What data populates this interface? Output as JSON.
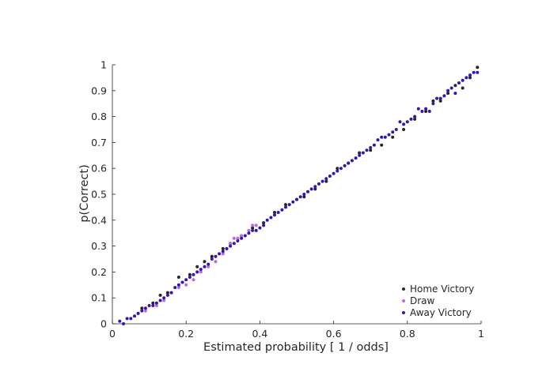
{
  "chart_data": {
    "type": "scatter",
    "xlabel": "Estimated probability [ 1 / odds]",
    "ylabel": "p(Correct)",
    "xlim": [
      0,
      1
    ],
    "ylim": [
      0,
      1
    ],
    "xticks": [
      "0",
      "0.2",
      "0.4",
      "0.6",
      "0.8",
      "1"
    ],
    "yticks": [
      "0",
      "0.1",
      "0.2",
      "0.3",
      "0.4",
      "0.5",
      "0.6",
      "0.7",
      "0.8",
      "0.9",
      "1"
    ],
    "grid": false,
    "legend": "bottom-right",
    "series": [
      {
        "name": "Home Victory",
        "color": "#262626",
        "points": [
          [
            0.08,
            0.06
          ],
          [
            0.11,
            0.08
          ],
          [
            0.13,
            0.11
          ],
          [
            0.15,
            0.12
          ],
          [
            0.18,
            0.18
          ],
          [
            0.21,
            0.19
          ],
          [
            0.23,
            0.22
          ],
          [
            0.25,
            0.24
          ],
          [
            0.27,
            0.26
          ],
          [
            0.3,
            0.29
          ],
          [
            0.32,
            0.31
          ],
          [
            0.35,
            0.34
          ],
          [
            0.38,
            0.37
          ],
          [
            0.41,
            0.39
          ],
          [
            0.44,
            0.43
          ],
          [
            0.47,
            0.46
          ],
          [
            0.5,
            0.48
          ],
          [
            0.52,
            0.49
          ],
          [
            0.55,
            0.52
          ],
          [
            0.58,
            0.55
          ],
          [
            0.61,
            0.6
          ],
          [
            0.64,
            0.62
          ],
          [
            0.67,
            0.66
          ],
          [
            0.7,
            0.67
          ],
          [
            0.73,
            0.69
          ],
          [
            0.76,
            0.72
          ],
          [
            0.79,
            0.75
          ],
          [
            0.82,
            0.79
          ],
          [
            0.85,
            0.82
          ],
          [
            0.87,
            0.86
          ],
          [
            0.89,
            0.86
          ],
          [
            0.91,
            0.89
          ],
          [
            0.93,
            0.92
          ],
          [
            0.95,
            0.91
          ],
          [
            0.97,
            0.95
          ],
          [
            0.99,
            0.99
          ]
        ]
      },
      {
        "name": "Draw",
        "color": "#b36ae2",
        "points": [
          [
            0.07,
            0.04
          ],
          [
            0.09,
            0.05
          ],
          [
            0.12,
            0.07
          ],
          [
            0.14,
            0.09
          ],
          [
            0.16,
            0.12
          ],
          [
            0.18,
            0.14
          ],
          [
            0.2,
            0.15
          ],
          [
            0.22,
            0.17
          ],
          [
            0.24,
            0.2
          ],
          [
            0.26,
            0.22
          ],
          [
            0.28,
            0.24
          ],
          [
            0.3,
            0.27
          ],
          [
            0.31,
            0.29
          ],
          [
            0.32,
            0.31
          ],
          [
            0.33,
            0.33
          ],
          [
            0.34,
            0.33
          ],
          [
            0.35,
            0.34
          ],
          [
            0.37,
            0.36
          ],
          [
            0.38,
            0.38
          ],
          [
            0.39,
            0.38
          ]
        ]
      },
      {
        "name": "Away Victory",
        "color": "#3713b2",
        "points": [
          [
            0.02,
            0.01
          ],
          [
            0.03,
            0.0
          ],
          [
            0.04,
            0.02
          ],
          [
            0.05,
            0.02
          ],
          [
            0.06,
            0.03
          ],
          [
            0.07,
            0.04
          ],
          [
            0.08,
            0.05
          ],
          [
            0.09,
            0.06
          ],
          [
            0.1,
            0.07
          ],
          [
            0.11,
            0.07
          ],
          [
            0.12,
            0.08
          ],
          [
            0.13,
            0.09
          ],
          [
            0.14,
            0.1
          ],
          [
            0.15,
            0.11
          ],
          [
            0.16,
            0.12
          ],
          [
            0.17,
            0.14
          ],
          [
            0.18,
            0.15
          ],
          [
            0.19,
            0.16
          ],
          [
            0.2,
            0.17
          ],
          [
            0.21,
            0.18
          ],
          [
            0.22,
            0.19
          ],
          [
            0.23,
            0.2
          ],
          [
            0.24,
            0.21
          ],
          [
            0.25,
            0.22
          ],
          [
            0.26,
            0.23
          ],
          [
            0.27,
            0.25
          ],
          [
            0.28,
            0.26
          ],
          [
            0.29,
            0.27
          ],
          [
            0.3,
            0.28
          ],
          [
            0.31,
            0.29
          ],
          [
            0.32,
            0.3
          ],
          [
            0.33,
            0.31
          ],
          [
            0.34,
            0.32
          ],
          [
            0.35,
            0.33
          ],
          [
            0.36,
            0.34
          ],
          [
            0.37,
            0.35
          ],
          [
            0.38,
            0.36
          ],
          [
            0.39,
            0.36
          ],
          [
            0.4,
            0.37
          ],
          [
            0.41,
            0.38
          ],
          [
            0.42,
            0.4
          ],
          [
            0.43,
            0.41
          ],
          [
            0.44,
            0.42
          ],
          [
            0.45,
            0.43
          ],
          [
            0.46,
            0.44
          ],
          [
            0.47,
            0.45
          ],
          [
            0.48,
            0.46
          ],
          [
            0.49,
            0.47
          ],
          [
            0.5,
            0.48
          ],
          [
            0.51,
            0.49
          ],
          [
            0.52,
            0.5
          ],
          [
            0.53,
            0.51
          ],
          [
            0.54,
            0.52
          ],
          [
            0.55,
            0.53
          ],
          [
            0.56,
            0.54
          ],
          [
            0.57,
            0.55
          ],
          [
            0.58,
            0.56
          ],
          [
            0.59,
            0.57
          ],
          [
            0.6,
            0.58
          ],
          [
            0.61,
            0.59
          ],
          [
            0.62,
            0.6
          ],
          [
            0.63,
            0.61
          ],
          [
            0.64,
            0.62
          ],
          [
            0.65,
            0.63
          ],
          [
            0.66,
            0.64
          ],
          [
            0.67,
            0.65
          ],
          [
            0.68,
            0.66
          ],
          [
            0.69,
            0.67
          ],
          [
            0.7,
            0.68
          ],
          [
            0.71,
            0.69
          ],
          [
            0.72,
            0.71
          ],
          [
            0.73,
            0.72
          ],
          [
            0.74,
            0.72
          ],
          [
            0.75,
            0.73
          ],
          [
            0.76,
            0.74
          ],
          [
            0.77,
            0.75
          ],
          [
            0.78,
            0.78
          ],
          [
            0.79,
            0.77
          ],
          [
            0.8,
            0.78
          ],
          [
            0.81,
            0.79
          ],
          [
            0.82,
            0.8
          ],
          [
            0.83,
            0.83
          ],
          [
            0.84,
            0.82
          ],
          [
            0.85,
            0.83
          ],
          [
            0.86,
            0.82
          ],
          [
            0.87,
            0.85
          ],
          [
            0.88,
            0.87
          ],
          [
            0.89,
            0.87
          ],
          [
            0.9,
            0.88
          ],
          [
            0.91,
            0.9
          ],
          [
            0.92,
            0.91
          ],
          [
            0.93,
            0.89
          ],
          [
            0.94,
            0.93
          ],
          [
            0.95,
            0.94
          ],
          [
            0.96,
            0.95
          ],
          [
            0.97,
            0.96
          ],
          [
            0.98,
            0.97
          ],
          [
            0.99,
            0.97
          ]
        ]
      }
    ]
  }
}
